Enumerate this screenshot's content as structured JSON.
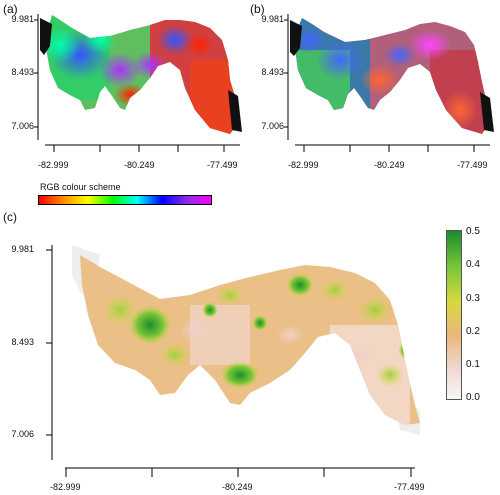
{
  "panels": {
    "a": {
      "label": "(a)"
    },
    "b": {
      "label": "(b)"
    },
    "c": {
      "label": "(c)"
    }
  },
  "axes": {
    "y_ticks": [
      "9.981",
      "8.493",
      "7.006"
    ],
    "x_ticks": [
      "-82.999",
      "-80.249",
      "-77.499"
    ]
  },
  "rgb_legend": {
    "title": "RGB colour scheme",
    "colors": [
      "#ff0000",
      "#ff8c00",
      "#ffff00",
      "#00ff00",
      "#00ffff",
      "#0000ff",
      "#8a2be2",
      "#ff00ff"
    ]
  },
  "colorbar": {
    "ticks": [
      "0.5",
      "0.4",
      "0.3",
      "0.2",
      "0.1",
      "0.0"
    ],
    "colors": [
      "#1a8f2a",
      "#7cc63a",
      "#d8d840",
      "#e8b878",
      "#f0d8d0",
      "#f8f8f8"
    ]
  }
}
